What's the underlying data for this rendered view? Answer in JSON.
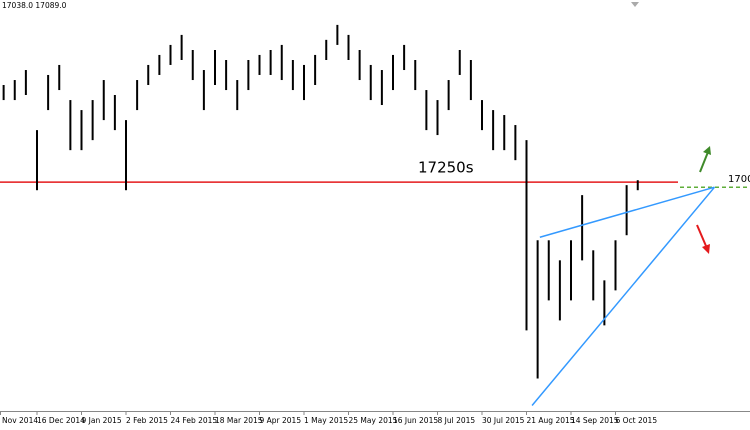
{
  "chart_data": {
    "type": "bars",
    "legend_text": "17038.0 17089.0",
    "categories": [
      "Nov 2014",
      null,
      null,
      null,
      "16 Dec 2014",
      null,
      null,
      null,
      "9 Jan 2015",
      null,
      null,
      null,
      "2 Feb 2015",
      null,
      null,
      null,
      "24 Feb 2015",
      null,
      null,
      null,
      "18 Mar 2015",
      null,
      null,
      null,
      "9 Apr 2015",
      null,
      null,
      null,
      "1 May 2015",
      null,
      null,
      null,
      "25 May 2015",
      null,
      null,
      null,
      "16 Jun 2015",
      null,
      null,
      null,
      "8 Jul 2015",
      null,
      null,
      null,
      "30 Jul 2015",
      null,
      null,
      null,
      "21 Aug 2015",
      null,
      null,
      null,
      "14 Sep 2015",
      null,
      null,
      null,
      "6 Oct 2015",
      null,
      null
    ],
    "high": [
      17760,
      17802,
      17843,
      17926,
      17428,
      17885,
      17968,
      17677,
      17594,
      17677,
      17843,
      17719,
      17511,
      17843,
      17968,
      18051,
      18134,
      18217,
      18092,
      17926,
      18092,
      18009,
      17843,
      18009,
      18051,
      18092,
      18134,
      18009,
      17968,
      18051,
      18176,
      18300,
      18217,
      18092,
      17968,
      17926,
      18051,
      18134,
      18009,
      17760,
      17677,
      17843,
      18092,
      18009,
      17677,
      17594,
      17553,
      17470,
      17345,
      16515,
      16515,
      16349,
      16515,
      16889,
      16432,
      16183,
      16515,
      16972,
      17013
    ],
    "low": [
      17640,
      17677,
      17677,
      17719,
      16930,
      17594,
      17760,
      17262,
      17262,
      17345,
      17511,
      17428,
      16930,
      17594,
      17802,
      17885,
      17968,
      18009,
      17843,
      17594,
      17802,
      17760,
      17594,
      17760,
      17885,
      17885,
      17843,
      17760,
      17677,
      17802,
      18009,
      18134,
      18009,
      17843,
      17677,
      17636,
      17760,
      17926,
      17760,
      17428,
      17387,
      17594,
      17885,
      17677,
      17428,
      17262,
      17262,
      17179,
      15768,
      15370,
      16017,
      15851,
      16017,
      16349,
      16017,
      15810,
      16100,
      16557,
      16930
    ],
    "color": "#000000",
    "ylim": [
      15150,
      18440
    ],
    "hline": {
      "value": 16997,
      "color": "#e41a1c"
    },
    "annotation": "17250s",
    "dashed_line": {
      "value": 16955,
      "color": "#5fae3a",
      "label": "1700"
    },
    "trendlines": [
      {
        "color": "#3399ff",
        "x": [
          49.2,
          64.9
        ],
        "y": [
          16540,
          16955
        ]
      },
      {
        "color": "#3399ff",
        "x": [
          48.5,
          64.9
        ],
        "y": [
          15146,
          16955
        ]
      }
    ]
  }
}
